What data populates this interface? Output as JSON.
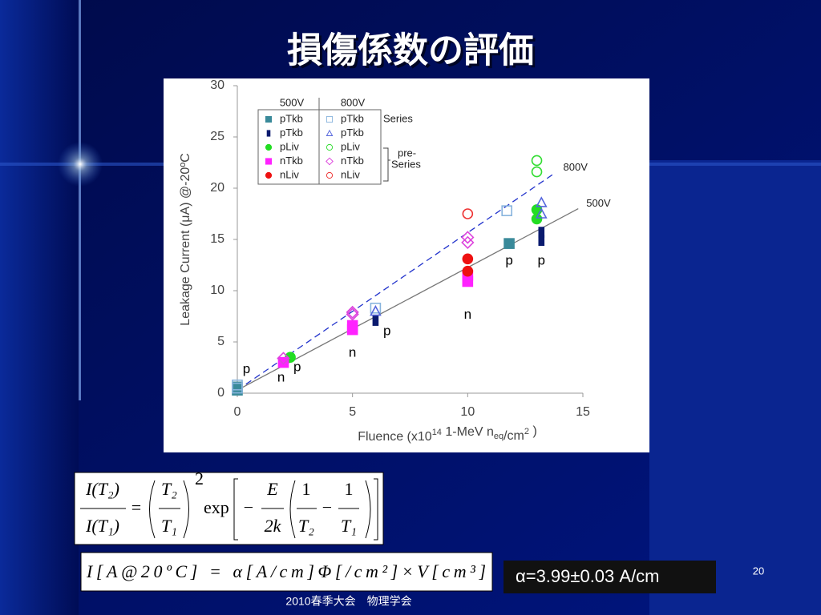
{
  "slide": {
    "title": "損傷係数の評価",
    "formula1": {
      "lhs_num": "I(T₂)",
      "lhs_den": "I(T₁)",
      "eq": "=",
      "ratio_num": "T₂",
      "ratio_den": "T₁",
      "power": "2",
      "exp": "exp",
      "minus": "−",
      "e_num": "E",
      "e_den": "2k",
      "f1_num": "1",
      "f1_den": "T₂",
      "minus2": "−",
      "f2_num": "1",
      "f2_den": "T₁"
    },
    "formula2": "I[A@20ºC] = α[A/cm]Φ[/cm²]×V[cm³]",
    "alpha_box": "α=3.99±0.03 A/cm",
    "page_number": "20",
    "footer": "2010春季大会　物理学会"
  },
  "chart_data": {
    "type": "scatter",
    "x_label_parts": [
      "Fluence (x10",
      "14",
      " 1-MeV n",
      "eq",
      "/cm",
      "2",
      "  )"
    ],
    "y_label": "Leakage Current (μA) @-20ºC",
    "xlim": [
      0,
      15
    ],
    "xticks": [
      0,
      5,
      10,
      15
    ],
    "ylim": [
      0,
      30
    ],
    "yticks": [
      0,
      5,
      10,
      15,
      20,
      25,
      30
    ],
    "legend": {
      "columns": [
        "500V",
        "800V"
      ],
      "row_groups": [
        {
          "lines": [
            "Series"
          ]
        },
        {
          "lines": [
            "pre-",
            "Series"
          ]
        }
      ]
    },
    "series": [
      {
        "name": "pTkb",
        "column": 0,
        "marker": "square",
        "filled": true,
        "color": "#3a8a9a",
        "x": [
          0,
          0,
          11.8
        ],
        "y": [
          0.3,
          0.6,
          14.6
        ]
      },
      {
        "name": "pTkb",
        "column": 0,
        "marker": "bar",
        "filled": true,
        "color": "#0a1a6e",
        "x": [
          6,
          13.2,
          13.2
        ],
        "y": [
          7.1,
          14.9,
          15.7
        ]
      },
      {
        "name": "pLiv",
        "column": 0,
        "marker": "circle",
        "filled": true,
        "color": "#22dd22",
        "x": [
          2.3,
          13,
          13
        ],
        "y": [
          3.5,
          17,
          17.9
        ]
      },
      {
        "name": "nTkb",
        "column": 0,
        "marker": "square",
        "filled": true,
        "color": "#ff22ff",
        "x": [
          2,
          5,
          5,
          10,
          10
        ],
        "y": [
          3,
          6.2,
          6.6,
          10.9,
          11.5
        ]
      },
      {
        "name": "nLiv",
        "column": 0,
        "marker": "circle",
        "filled": true,
        "color": "#ee1111",
        "x": [
          10,
          10
        ],
        "y": [
          13.1,
          11.9
        ]
      },
      {
        "name": "pTkb",
        "column": 1,
        "marker": "square",
        "filled": false,
        "color": "#88b4dd",
        "x": [
          0,
          0,
          6,
          11.7
        ],
        "y": [
          0.5,
          0.8,
          8.3,
          17.8
        ]
      },
      {
        "name": "pTkb",
        "column": 1,
        "marker": "triangle",
        "filled": false,
        "color": "#5566dd",
        "x": [
          6,
          13.2,
          13.2
        ],
        "y": [
          8,
          18.6,
          17.5
        ]
      },
      {
        "name": "pLiv",
        "column": 1,
        "marker": "circle",
        "filled": false,
        "color": "#33dd33",
        "x": [
          13,
          13
        ],
        "y": [
          21.6,
          22.7
        ]
      },
      {
        "name": "nTkb",
        "column": 1,
        "marker": "diamond",
        "filled": false,
        "color": "#dd44dd",
        "x": [
          2,
          5,
          5,
          10,
          10
        ],
        "y": [
          3.4,
          7.7,
          7.9,
          14.7,
          15.2
        ]
      },
      {
        "name": "nLiv",
        "column": 1,
        "marker": "circle",
        "filled": false,
        "color": "#ee3333",
        "x": [
          10
        ],
        "y": [
          17.5
        ]
      }
    ],
    "fit_lines": [
      {
        "name": "800V",
        "dashed": true,
        "color": "#2233cc",
        "x": [
          0,
          13.8
        ],
        "y": [
          0.3,
          21.5
        ]
      },
      {
        "name": "500V",
        "dashed": false,
        "color": "#777777",
        "x": [
          0,
          14.8
        ],
        "y": [
          0.3,
          18
        ]
      }
    ],
    "annotations": [
      {
        "text": "p",
        "x": 0.4,
        "y": 2.3
      },
      {
        "text": "n",
        "x": 1.9,
        "y": 1.5
      },
      {
        "text": "p",
        "x": 2.6,
        "y": 2.5
      },
      {
        "text": "n",
        "x": 5,
        "y": 3.9
      },
      {
        "text": "p",
        "x": 6.5,
        "y": 6
      },
      {
        "text": "n",
        "x": 10,
        "y": 7.6
      },
      {
        "text": "p",
        "x": 11.8,
        "y": 12.9
      },
      {
        "text": "p",
        "x": 13.2,
        "y": 12.9
      }
    ]
  }
}
